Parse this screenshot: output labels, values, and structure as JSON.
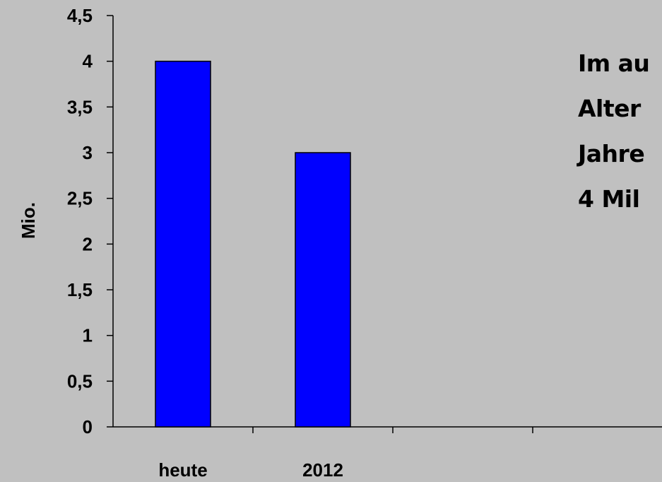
{
  "chart_data": {
    "type": "bar",
    "categories": [
      "heute",
      "2012"
    ],
    "values": [
      4,
      3
    ],
    "ylabel": "Mio.",
    "ylim": [
      0,
      4.5
    ],
    "yticks": [
      "0",
      "0,5",
      "1",
      "1,5",
      "2",
      "2,5",
      "3",
      "3,5",
      "4",
      "4,5"
    ],
    "bar_color": "#0000ff",
    "background": "#c0c0c0",
    "grid": false
  },
  "annotation": {
    "lines": [
      "Im au",
      "Alter",
      "Jahre",
      "4 Mil"
    ]
  }
}
